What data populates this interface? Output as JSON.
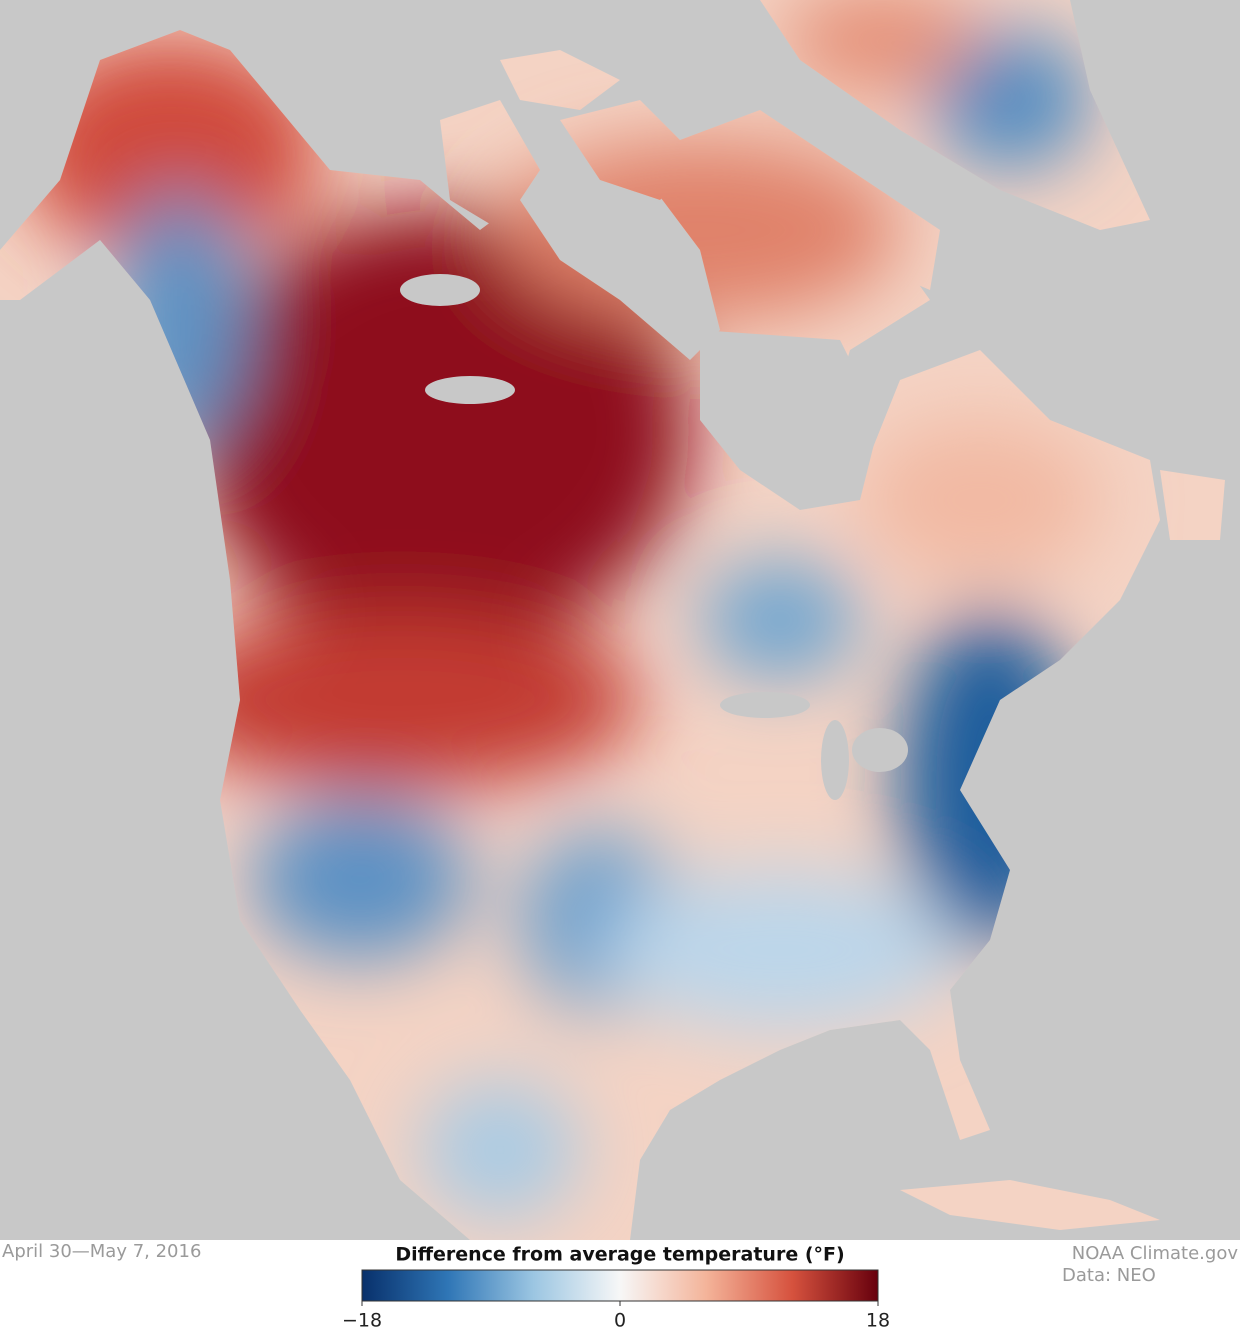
{
  "map": {
    "date": "April 30—May 7, 2016",
    "credit": "NOAA Climate.gov",
    "source": "Data: NEO"
  },
  "legend": {
    "title": "Difference from average temperature (°F)",
    "lim": [
      -18,
      18
    ],
    "ticks": [
      {
        "value": -18,
        "label": "−18"
      },
      0,
      18
    ],
    "colors": [
      "#08306b",
      "#2f76b6",
      "#9cc6e2",
      "#f7f7f7",
      "#f4b49a",
      "#d6523e",
      "#67000d"
    ]
  }
}
